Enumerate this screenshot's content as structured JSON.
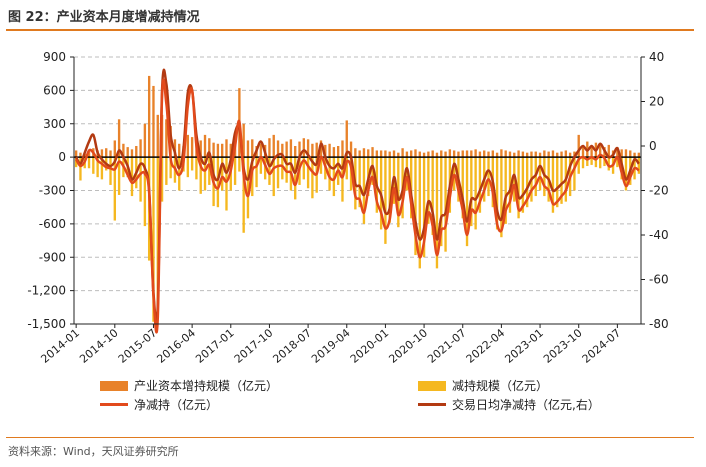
{
  "header": {
    "title": "图 22：产业资本月度增减持情况"
  },
  "footer": {
    "source": "资料来源：Wind，天风证券研究所"
  },
  "chart_data": {
    "type": "bar",
    "colors": {
      "increase": "#e8822a",
      "reduce": "#f5b820",
      "net": "#e24a1c",
      "daily": "#b33a12",
      "zero": "#000000",
      "grid": "#bdbdbd"
    },
    "left_axis": {
      "ylim": [
        -1500,
        900
      ],
      "ticks": [
        "900",
        "600",
        "300",
        "0",
        "-300",
        "-600",
        "-900",
        "-1,200",
        "-1,500"
      ],
      "tick_values": [
        900,
        600,
        300,
        0,
        -300,
        -600,
        -900,
        -1200,
        -1500
      ]
    },
    "right_axis": {
      "ylim": [
        -80,
        40
      ],
      "ticks": [
        "40",
        "20",
        "0",
        "-20",
        "-40",
        "-60",
        "-80"
      ],
      "tick_values": [
        40,
        20,
        0,
        -20,
        -40,
        -60,
        -80
      ]
    },
    "x_ticks": [
      "2014-01",
      "2014-10",
      "2015-07",
      "2016-04",
      "2017-01",
      "2017-10",
      "2018-07",
      "2019-04",
      "2020-01",
      "2020-10",
      "2021-07",
      "2022-04",
      "2023-01",
      "2023-10",
      "2024-07"
    ],
    "months": [
      "2014-01",
      "2014-02",
      "2014-03",
      "2014-04",
      "2014-05",
      "2014-06",
      "2014-07",
      "2014-08",
      "2014-09",
      "2014-10",
      "2014-11",
      "2014-12",
      "2015-01",
      "2015-02",
      "2015-03",
      "2015-04",
      "2015-05",
      "2015-06",
      "2015-07",
      "2015-08",
      "2015-09",
      "2015-10",
      "2015-11",
      "2015-12",
      "2016-01",
      "2016-02",
      "2016-03",
      "2016-04",
      "2016-05",
      "2016-06",
      "2016-07",
      "2016-08",
      "2016-09",
      "2016-10",
      "2016-11",
      "2016-12",
      "2017-01",
      "2017-02",
      "2017-03",
      "2017-04",
      "2017-05",
      "2017-06",
      "2017-07",
      "2017-08",
      "2017-09",
      "2017-10",
      "2017-11",
      "2017-12",
      "2018-01",
      "2018-02",
      "2018-03",
      "2018-04",
      "2018-05",
      "2018-06",
      "2018-07",
      "2018-08",
      "2018-09",
      "2018-10",
      "2018-11",
      "2018-12",
      "2019-01",
      "2019-02",
      "2019-03",
      "2019-04",
      "2019-05",
      "2019-06",
      "2019-07",
      "2019-08",
      "2019-09",
      "2019-10",
      "2019-11",
      "2019-12",
      "2020-01",
      "2020-02",
      "2020-03",
      "2020-04",
      "2020-05",
      "2020-06",
      "2020-07",
      "2020-08",
      "2020-09",
      "2020-10",
      "2020-11",
      "2020-12",
      "2021-01",
      "2021-02",
      "2021-03",
      "2021-04",
      "2021-05",
      "2021-06",
      "2021-07",
      "2021-08",
      "2021-09",
      "2021-10",
      "2021-11",
      "2021-12",
      "2022-01",
      "2022-02",
      "2022-03",
      "2022-04",
      "2022-05",
      "2022-06",
      "2022-07",
      "2022-08",
      "2022-09",
      "2022-10",
      "2022-11",
      "2022-12",
      "2023-01",
      "2023-02",
      "2023-03",
      "2023-04",
      "2023-05",
      "2023-06",
      "2023-07",
      "2023-08",
      "2023-09",
      "2023-10",
      "2023-11",
      "2023-12",
      "2024-01",
      "2024-02",
      "2024-03",
      "2024-04",
      "2024-05",
      "2024-06",
      "2024-07",
      "2024-08",
      "2024-09",
      "2024-10",
      "2024-11",
      "2024-12"
    ],
    "series": [
      {
        "name": "产业资本增持规模（亿元）",
        "axis": "left",
        "kind": "bar",
        "values": [
          60,
          40,
          30,
          50,
          80,
          60,
          70,
          80,
          60,
          150,
          340,
          120,
          90,
          70,
          100,
          160,
          300,
          730,
          640,
          380,
          380,
          340,
          280,
          160,
          120,
          100,
          200,
          180,
          120,
          150,
          200,
          170,
          130,
          120,
          120,
          160,
          120,
          130,
          620,
          300,
          150,
          160,
          100,
          120,
          110,
          170,
          200,
          150,
          120,
          140,
          160,
          100,
          140,
          170,
          160,
          120,
          130,
          150,
          110,
          120,
          90,
          100,
          150,
          330,
          140,
          80,
          60,
          80,
          70,
          90,
          60,
          60,
          60,
          50,
          60,
          40,
          80,
          50,
          60,
          70,
          50,
          40,
          50,
          60,
          40,
          60,
          50,
          70,
          60,
          50,
          60,
          60,
          60,
          70,
          50,
          60,
          50,
          60,
          40,
          70,
          60,
          50,
          40,
          60,
          50,
          40,
          50,
          50,
          40,
          60,
          50,
          60,
          40,
          50,
          60,
          40,
          50,
          200,
          90,
          140,
          100,
          130,
          120,
          90,
          110,
          60,
          90,
          70,
          70,
          60,
          40,
          40
        ]
      },
      {
        "name": "减持规模（亿元）",
        "axis": "left",
        "kind": "bar",
        "values": [
          -90,
          -210,
          -100,
          -100,
          -150,
          -180,
          -200,
          -120,
          -250,
          -570,
          -340,
          -180,
          -180,
          -350,
          -280,
          -400,
          -620,
          -930,
          -1480,
          -1350,
          -400,
          -250,
          -190,
          -230,
          -300,
          -130,
          -180,
          -120,
          -200,
          -330,
          -300,
          -250,
          -440,
          -450,
          -300,
          -480,
          -300,
          -250,
          -130,
          -680,
          -550,
          -350,
          -270,
          -150,
          -200,
          -250,
          -350,
          -280,
          -200,
          -230,
          -300,
          -380,
          -250,
          -200,
          -280,
          -370,
          -320,
          -150,
          -200,
          -300,
          -350,
          -250,
          -400,
          -200,
          -300,
          -470,
          -450,
          -600,
          -350,
          -250,
          -500,
          -650,
          -780,
          -590,
          -420,
          -630,
          -550,
          -300,
          -550,
          -880,
          -1000,
          -900,
          -600,
          -700,
          -1000,
          -800,
          -850,
          -500,
          -300,
          -400,
          -550,
          -800,
          -620,
          -650,
          -500,
          -400,
          -350,
          -450,
          -650,
          -720,
          -600,
          -500,
          -400,
          -550,
          -500,
          -450,
          -400,
          -350,
          -300,
          -350,
          -400,
          -500,
          -450,
          -420,
          -400,
          -350,
          -300,
          -150,
          -100,
          -80,
          -70,
          -90,
          -100,
          -80,
          -120,
          -150,
          -90,
          -200,
          -300,
          -250,
          -200,
          -150
        ]
      },
      {
        "name": "净减持（亿元）",
        "axis": "left",
        "kind": "line",
        "values": [
          -20,
          -80,
          -40,
          60,
          40,
          -30,
          -60,
          -90,
          -100,
          -110,
          -40,
          -80,
          -160,
          -230,
          -200,
          -150,
          -150,
          -320,
          -1250,
          -1450,
          550,
          480,
          -10,
          -100,
          -160,
          -40,
          460,
          600,
          100,
          -80,
          -120,
          -70,
          -230,
          -280,
          -180,
          -220,
          -120,
          100,
          320,
          -160,
          -350,
          -120,
          -80,
          0,
          -70,
          -150,
          -100,
          -80,
          -80,
          -130,
          -140,
          -250,
          -100,
          -30,
          -80,
          -130,
          -150,
          0,
          -80,
          -180,
          -200,
          -120,
          -180,
          -40,
          -90,
          -350,
          -380,
          -500,
          -300,
          -180,
          -400,
          -500,
          -640,
          -560,
          -280,
          -520,
          -400,
          -180,
          -420,
          -700,
          -900,
          -760,
          -500,
          -620,
          -880,
          -660,
          -620,
          -360,
          -160,
          -300,
          -480,
          -700,
          -480,
          -500,
          -400,
          -300,
          -200,
          -320,
          -600,
          -660,
          -480,
          -400,
          -250,
          -470,
          -440,
          -380,
          -300,
          -250,
          -180,
          -260,
          -300,
          -420,
          -400,
          -350,
          -300,
          -180,
          -100,
          -20,
          0,
          -20,
          0,
          -20,
          20,
          -10,
          -80,
          -70,
          0,
          -140,
          -260,
          -180,
          -100,
          -120
        ]
      },
      {
        "name": "交易日均净减持（亿元,右）",
        "axis": "right",
        "kind": "line",
        "values": [
          -5,
          -8,
          -3,
          2,
          5,
          -3,
          -6,
          -8,
          -9,
          -7,
          -2,
          -5,
          -9,
          -15,
          -12,
          -8,
          -10,
          -20,
          -66,
          -72,
          25,
          28,
          5,
          -3,
          -10,
          -1,
          24,
          25,
          5,
          -5,
          -8,
          -3,
          -13,
          -15,
          -8,
          -12,
          -6,
          6,
          8,
          -10,
          -15,
          -7,
          -2,
          2,
          -3,
          -9,
          -6,
          -4,
          -4,
          -8,
          -8,
          -12,
          -5,
          -2,
          -4,
          -7,
          -8,
          1,
          -5,
          -9,
          -10,
          -8,
          -10,
          -3,
          -5,
          -17,
          -18,
          -22,
          -15,
          -9,
          -18,
          -22,
          -30,
          -28,
          -14,
          -24,
          -20,
          -10,
          -22,
          -34,
          -42,
          -37,
          -25,
          -30,
          -42,
          -32,
          -30,
          -18,
          -8,
          -15,
          -24,
          -34,
          -24,
          -24,
          -20,
          -15,
          -11,
          -16,
          -29,
          -33,
          -23,
          -20,
          -13,
          -23,
          -22,
          -19,
          -15,
          -13,
          -9,
          -13,
          -15,
          -20,
          -19,
          -17,
          -15,
          -9,
          -5,
          -2,
          0,
          -2,
          0,
          -2,
          1,
          -2,
          -5,
          -4,
          -1,
          -8,
          -15,
          -11,
          -6,
          -8
        ]
      }
    ]
  }
}
